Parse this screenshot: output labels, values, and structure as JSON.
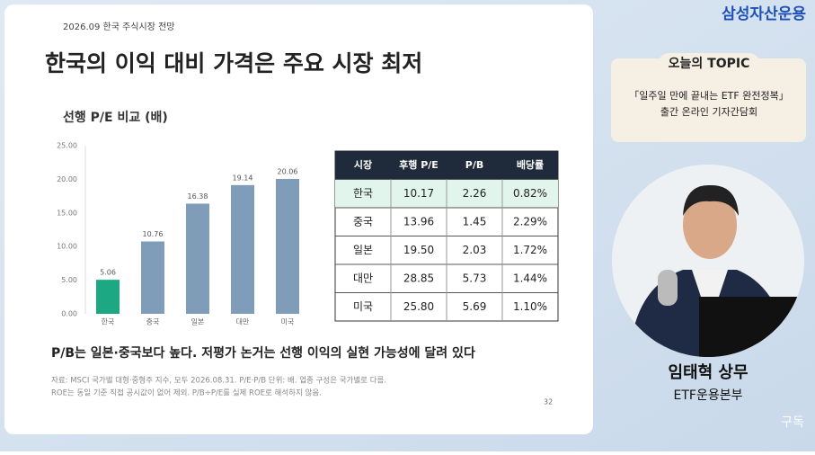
{
  "brand": "삼성자산운용",
  "slide": {
    "date": "2026.09  한국 주식시장 전망",
    "title": "한국의 이익 대비 가격은 주요 시장 최저",
    "subtitle": "P/B는 일본·중국보다 높다. 저평가 논거는 선행 이익의 실현 가능성에 달려 있다",
    "source": [
      "자료: MSCI 국가별 대형·중형주 지수, 모두 2026.08.31. P/E·P/B 단위: 배. 업종 구성은 국가별로 다름.",
      "ROE는 동일 기준 직접 공시값이 없어 제외. P/B÷P/E를 실제 ROE로 해석하지 않음."
    ],
    "page": "32",
    "table": {
      "header": [
        "시장",
        "후행 P/E",
        "P/B",
        "배당률"
      ],
      "rows": [
        [
          "한국",
          "10.17",
          "2.26",
          "0.82%"
        ],
        [
          "중국",
          "13.96",
          "1.45",
          "2.29%"
        ],
        [
          "일본",
          "19.50",
          "2.03",
          "1.72%"
        ],
        [
          "대만",
          "28.85",
          "5.73",
          "1.44%"
        ],
        [
          "미국",
          "25.80",
          "5.69",
          "1.10%"
        ]
      ]
    }
  },
  "chart_data": {
    "type": "bar",
    "title": "선행 P/E 비교 (배)",
    "categories": [
      "한국",
      "중국",
      "일본",
      "대만",
      "미국"
    ],
    "values": [
      5.06,
      10.76,
      16.38,
      19.14,
      20.06
    ],
    "colors": [
      "#1ba882",
      "#7f9cb8",
      "#7f9cb8",
      "#7f9cb8",
      "#7f9cb8"
    ],
    "ylim": [
      0,
      25
    ],
    "yticks": [
      {
        "value": 0,
        "label": "0.00"
      },
      {
        "value": 5,
        "label": "5.00"
      },
      {
        "value": 10,
        "label": "10.00"
      },
      {
        "value": 15,
        "label": "15.00"
      },
      {
        "value": 20,
        "label": "20.00"
      },
      {
        "value": 25,
        "label": "25.00"
      }
    ]
  },
  "topic": {
    "heading": "오늘의 TOPIC",
    "lines": [
      "「일주일 만에 끝내는 ETF 완전정복」",
      "출간 온라인 기자간담회"
    ]
  },
  "speaker": {
    "name": "임태혁 상무",
    "role": "ETF운용본부"
  },
  "subscribe": "구독"
}
